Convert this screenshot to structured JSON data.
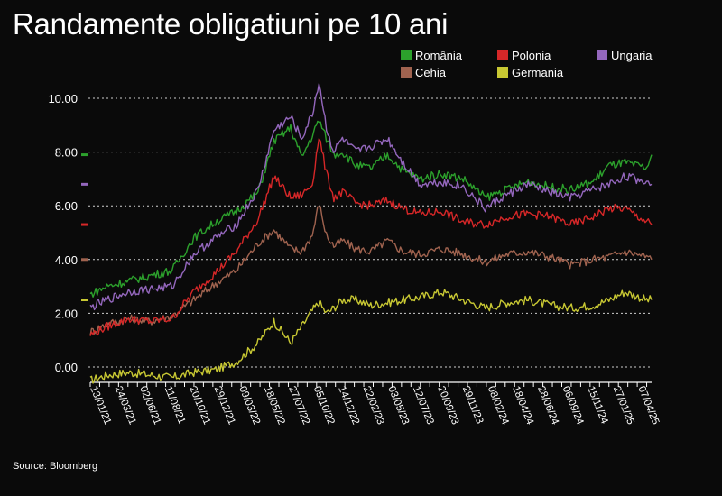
{
  "title": "Randamente obligatiuni pe 10 ani",
  "source": "Source: Bloomberg",
  "chart_data": {
    "type": "line",
    "title": "Randamente obligatiuni pe 10 ani",
    "xlabel": "",
    "ylabel": "",
    "ylim": [
      0,
      11
    ],
    "y_ticks": [
      "0.00",
      "2.00",
      "4.00",
      "6.00",
      "8.00",
      "10.00"
    ],
    "y_tick_values": [
      0,
      2,
      4,
      6,
      8,
      10
    ],
    "x_tick_labels": [
      "13/01/21",
      "24/03/21",
      "02/06/21",
      "11/08/21",
      "20/10/21",
      "29/12/21",
      "09/03/22",
      "18/05/22",
      "27/07/22",
      "05/10/22",
      "14/12/22",
      "22/02/23",
      "03/05/23",
      "12/07/23",
      "20/09/23",
      "29/11/23",
      "08/02/24",
      "18/04/24",
      "28/06/24",
      "06/09/24",
      "15/11/24",
      "27/01/25",
      "07/04/25"
    ],
    "x_tick_dates": [
      "2021-01-13",
      "2021-03-24",
      "2021-06-02",
      "2021-08-11",
      "2021-10-20",
      "2021-12-29",
      "2022-03-09",
      "2022-05-18",
      "2022-07-27",
      "2022-10-05",
      "2022-12-14",
      "2023-02-22",
      "2023-05-03",
      "2023-07-12",
      "2023-09-20",
      "2023-11-29",
      "2024-02-08",
      "2024-04-18",
      "2024-06-28",
      "2024-09-06",
      "2024-11-15",
      "2025-01-27",
      "2025-04-07"
    ],
    "grid": "horizontal dotted",
    "legend_position": "top-right",
    "series": [
      {
        "name": "România",
        "color": "#2ca02c",
        "x": [
          "2021-01-13",
          "2021-03-01",
          "2021-05-01",
          "2021-07-01",
          "2021-09-01",
          "2021-11-01",
          "2022-01-01",
          "2022-03-01",
          "2022-05-01",
          "2022-06-15",
          "2022-08-01",
          "2022-09-01",
          "2022-10-01",
          "2022-10-20",
          "2022-11-10",
          "2022-12-01",
          "2022-12-25",
          "2023-02-01",
          "2023-03-15",
          "2023-05-01",
          "2023-06-15",
          "2023-08-01",
          "2023-10-01",
          "2023-12-01",
          "2024-02-01",
          "2024-04-01",
          "2024-06-01",
          "2024-08-01",
          "2024-10-01",
          "2024-12-01",
          "2025-01-15",
          "2025-03-01",
          "2025-05-01",
          "2025-05-15"
        ],
        "y": [
          2.7,
          3.0,
          3.2,
          3.4,
          3.6,
          4.8,
          5.4,
          5.8,
          6.5,
          8.4,
          8.9,
          7.8,
          8.6,
          9.2,
          8.5,
          7.9,
          8.0,
          7.5,
          7.4,
          7.9,
          7.3,
          7.0,
          7.2,
          7.0,
          6.3,
          6.6,
          6.9,
          6.7,
          6.6,
          6.9,
          7.5,
          7.6,
          7.4,
          7.9
        ]
      },
      {
        "name": "Polonia",
        "color": "#d62728",
        "x": [
          "2021-01-13",
          "2021-03-01",
          "2021-05-01",
          "2021-07-01",
          "2021-09-01",
          "2021-11-01",
          "2022-01-01",
          "2022-03-01",
          "2022-05-01",
          "2022-06-15",
          "2022-08-01",
          "2022-09-01",
          "2022-10-01",
          "2022-10-20",
          "2022-11-10",
          "2022-12-01",
          "2022-12-25",
          "2023-02-01",
          "2023-03-15",
          "2023-05-01",
          "2023-06-15",
          "2023-08-01",
          "2023-10-01",
          "2023-12-01",
          "2024-02-01",
          "2024-04-01",
          "2024-06-01",
          "2024-08-01",
          "2024-10-01",
          "2024-12-01",
          "2025-01-15",
          "2025-03-01",
          "2025-05-01",
          "2025-05-15"
        ],
        "y": [
          1.2,
          1.5,
          1.8,
          1.7,
          1.8,
          2.8,
          3.5,
          4.3,
          5.5,
          7.1,
          6.3,
          6.4,
          6.8,
          8.6,
          7.2,
          6.3,
          6.5,
          6.1,
          6.0,
          6.2,
          5.9,
          5.7,
          5.8,
          5.4,
          5.3,
          5.6,
          5.7,
          5.6,
          5.3,
          5.6,
          5.9,
          5.9,
          5.4,
          5.3
        ]
      },
      {
        "name": "Ungaria",
        "color": "#9467bd",
        "x": [
          "2021-01-13",
          "2021-03-01",
          "2021-05-01",
          "2021-07-01",
          "2021-09-01",
          "2021-11-01",
          "2022-01-01",
          "2022-03-01",
          "2022-05-01",
          "2022-06-15",
          "2022-08-01",
          "2022-09-01",
          "2022-10-01",
          "2022-10-20",
          "2022-11-10",
          "2022-12-01",
          "2022-12-25",
          "2023-02-01",
          "2023-03-15",
          "2023-05-01",
          "2023-06-15",
          "2023-08-01",
          "2023-10-01",
          "2023-12-01",
          "2024-02-01",
          "2024-04-01",
          "2024-06-01",
          "2024-08-01",
          "2024-10-01",
          "2024-12-01",
          "2025-01-15",
          "2025-03-01",
          "2025-05-01",
          "2025-05-15"
        ],
        "y": [
          2.2,
          2.5,
          2.8,
          2.9,
          3.0,
          4.2,
          4.8,
          5.3,
          6.6,
          8.8,
          9.3,
          8.5,
          9.4,
          10.6,
          8.9,
          8.0,
          8.5,
          8.0,
          8.2,
          8.5,
          7.6,
          6.8,
          6.9,
          6.7,
          5.9,
          6.4,
          6.8,
          6.5,
          6.3,
          6.6,
          6.8,
          7.1,
          6.9,
          6.8
        ]
      },
      {
        "name": "Cehia",
        "color": "#a0634f",
        "x": [
          "2021-01-13",
          "2021-03-01",
          "2021-05-01",
          "2021-07-01",
          "2021-09-01",
          "2021-11-01",
          "2022-01-01",
          "2022-03-01",
          "2022-05-01",
          "2022-06-15",
          "2022-08-01",
          "2022-09-01",
          "2022-10-01",
          "2022-10-20",
          "2022-11-10",
          "2022-12-01",
          "2022-12-25",
          "2023-02-01",
          "2023-03-15",
          "2023-05-01",
          "2023-06-15",
          "2023-08-01",
          "2023-10-01",
          "2023-12-01",
          "2024-02-01",
          "2024-04-01",
          "2024-06-01",
          "2024-08-01",
          "2024-10-01",
          "2024-12-01",
          "2025-01-15",
          "2025-03-01",
          "2025-05-01",
          "2025-05-15"
        ],
        "y": [
          1.3,
          1.6,
          1.8,
          1.7,
          1.9,
          2.5,
          3.1,
          3.6,
          4.6,
          5.1,
          4.4,
          4.3,
          4.9,
          6.1,
          4.9,
          4.5,
          4.7,
          4.4,
          4.3,
          4.7,
          4.3,
          4.2,
          4.4,
          4.2,
          3.9,
          4.2,
          4.3,
          4.1,
          3.8,
          4.0,
          4.1,
          4.3,
          4.1,
          4.0
        ]
      },
      {
        "name": "Germania",
        "color": "#c8c833",
        "x": [
          "2021-01-13",
          "2021-03-01",
          "2021-05-01",
          "2021-07-01",
          "2021-09-01",
          "2021-11-01",
          "2022-01-01",
          "2022-03-01",
          "2022-05-01",
          "2022-06-15",
          "2022-08-01",
          "2022-09-01",
          "2022-10-01",
          "2022-10-20",
          "2022-11-10",
          "2022-12-01",
          "2022-12-25",
          "2023-02-01",
          "2023-03-15",
          "2023-05-01",
          "2023-06-15",
          "2023-08-01",
          "2023-10-01",
          "2023-12-01",
          "2024-02-01",
          "2024-04-01",
          "2024-06-01",
          "2024-08-01",
          "2024-10-01",
          "2024-12-01",
          "2025-01-15",
          "2025-03-01",
          "2025-05-01",
          "2025-05-15"
        ],
        "y": [
          -0.5,
          -0.3,
          -0.2,
          -0.3,
          -0.4,
          -0.2,
          -0.1,
          0.2,
          0.9,
          1.7,
          0.9,
          1.5,
          2.1,
          2.4,
          2.0,
          2.2,
          2.5,
          2.5,
          2.3,
          2.4,
          2.5,
          2.6,
          2.8,
          2.5,
          2.2,
          2.4,
          2.5,
          2.3,
          2.2,
          2.3,
          2.5,
          2.8,
          2.5,
          2.5
        ]
      }
    ],
    "legend_row_1": [
      "România",
      "Polonia",
      "Ungaria"
    ],
    "legend_row_2": [
      "Cehia",
      "Germania"
    ]
  }
}
